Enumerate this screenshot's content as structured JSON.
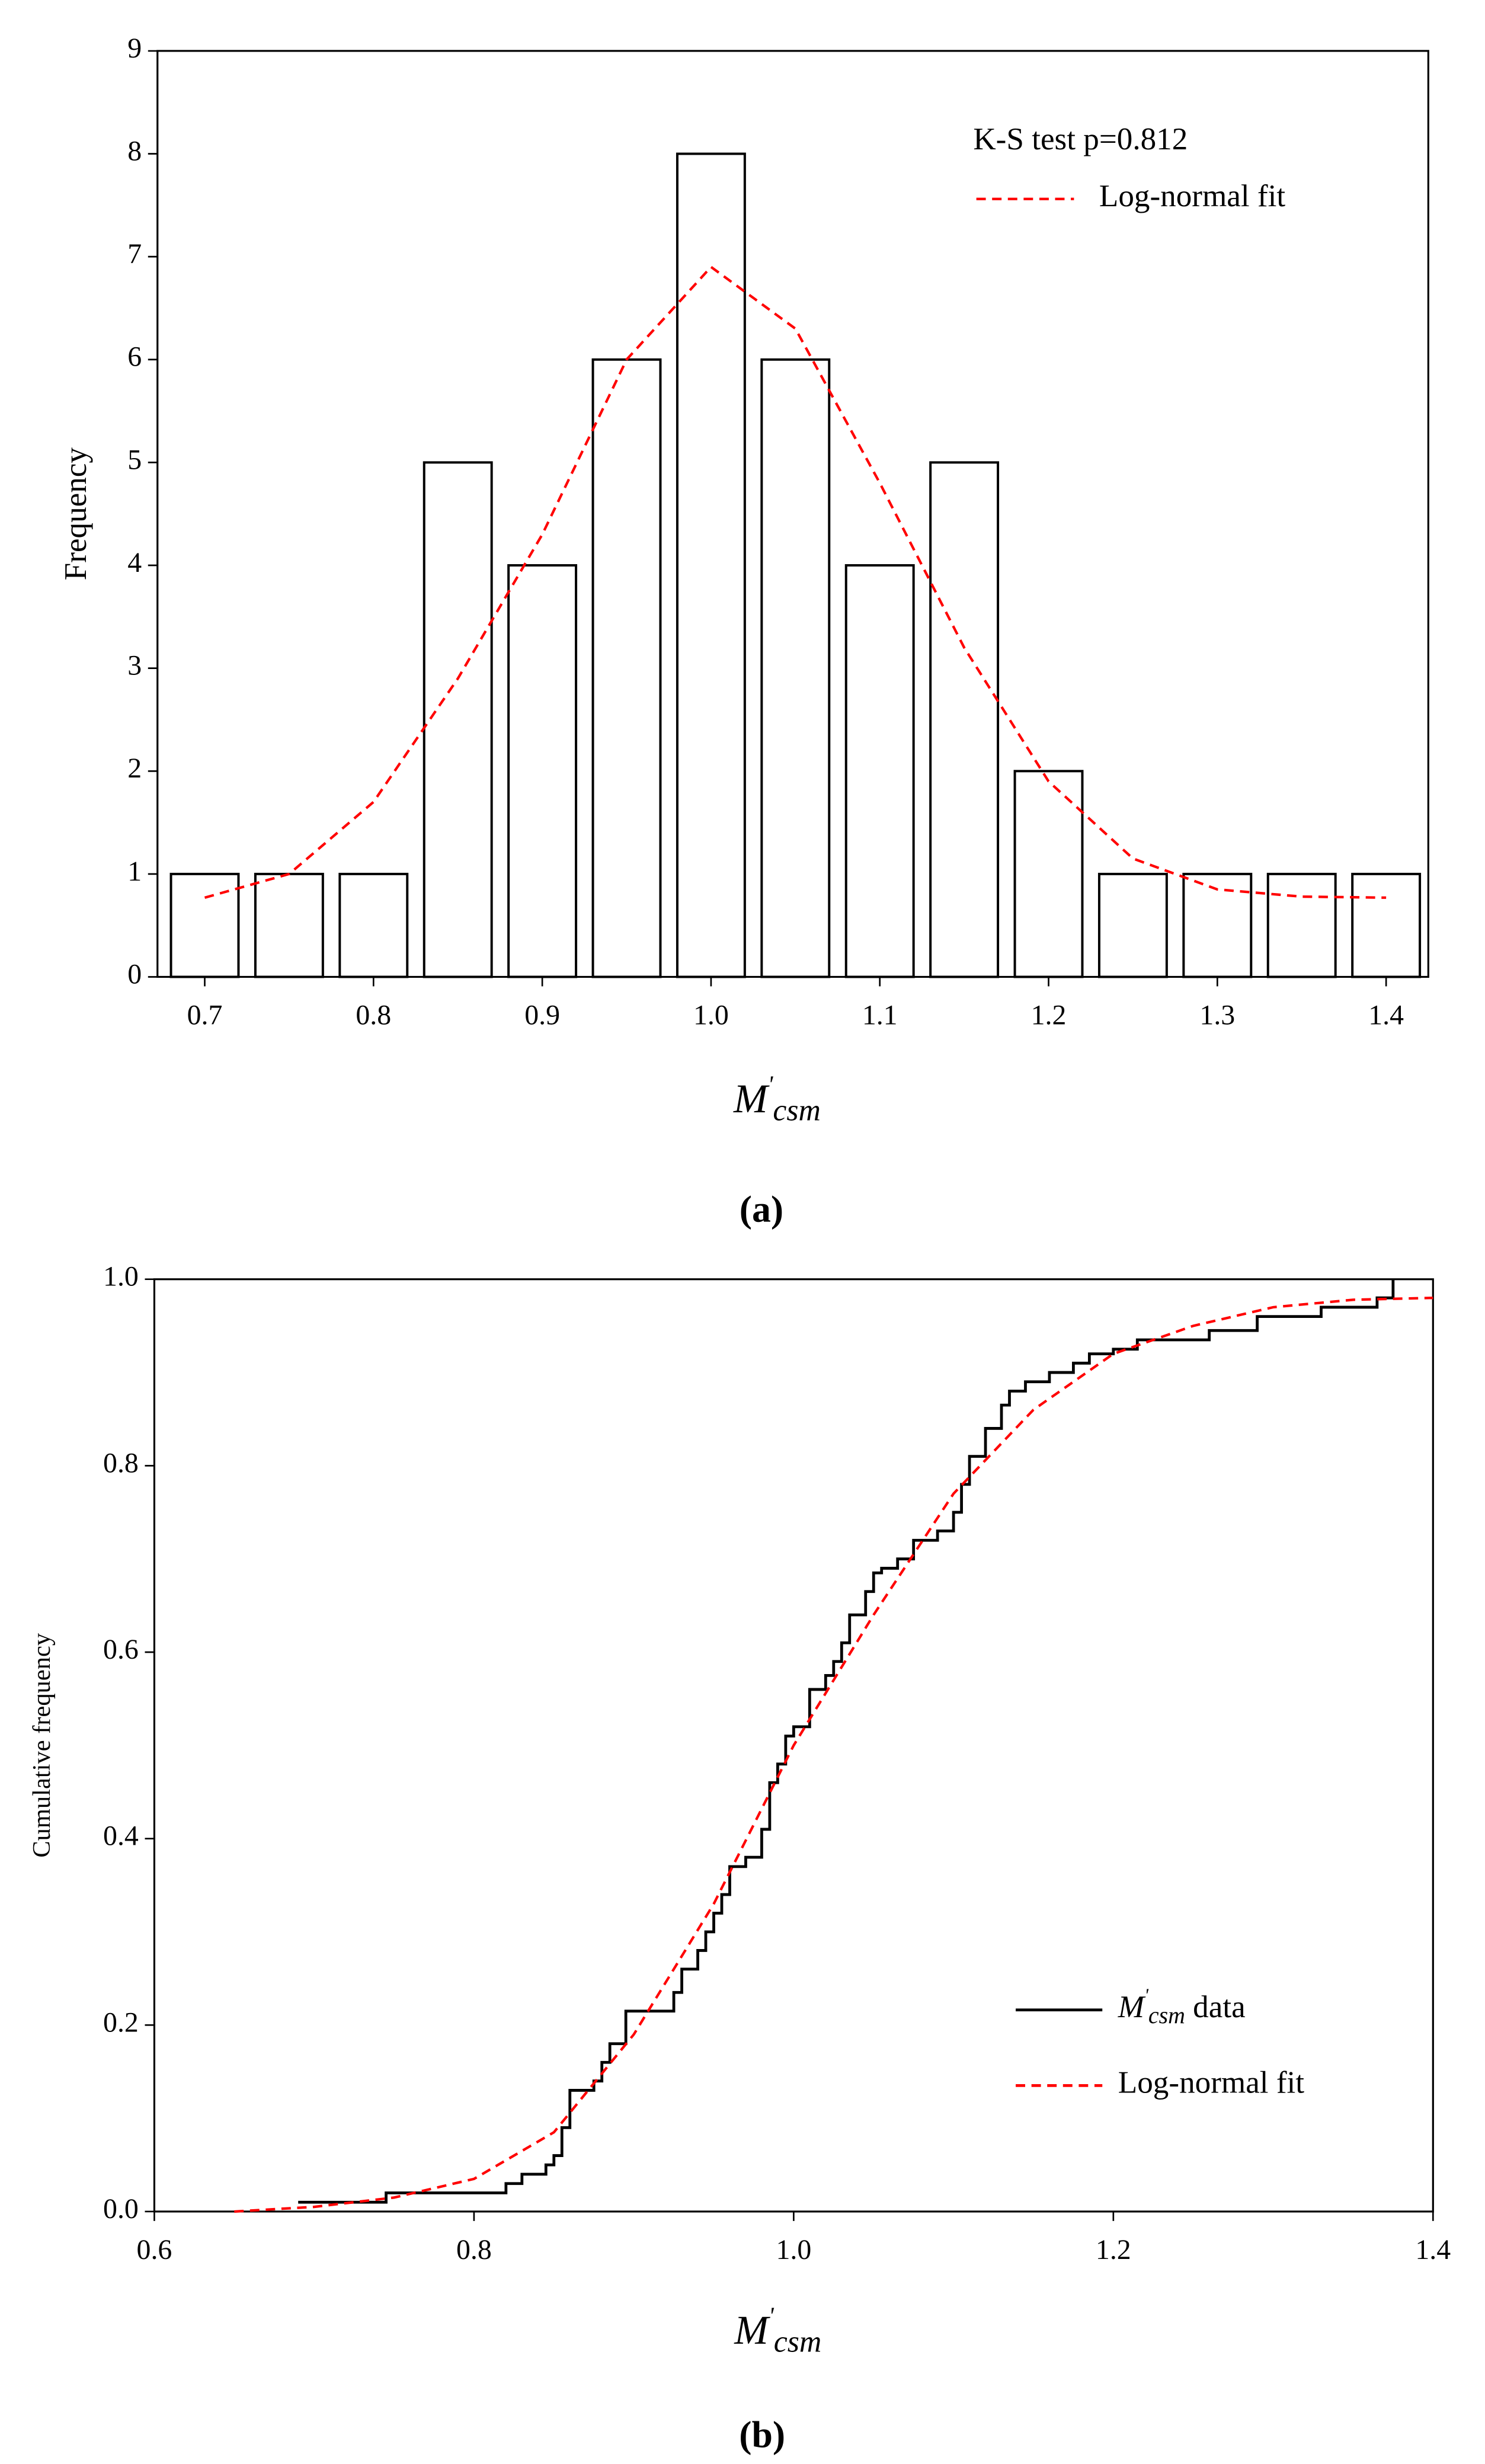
{
  "chart_data": [
    {
      "type": "histogram",
      "ylabel": "Frequency",
      "xlabel": {
        "base": "M",
        "sup": "'",
        "sub": "csm"
      },
      "caption": "(a)",
      "annotation": "K-S test p=0.812",
      "bins": [
        0.675,
        0.725,
        0.775,
        0.825,
        0.875,
        0.925,
        0.975,
        1.025,
        1.075,
        1.125,
        1.175,
        1.225,
        1.275,
        1.325,
        1.375,
        1.425
      ],
      "counts": [
        1,
        1,
        1,
        5,
        4,
        6,
        8,
        6,
        4,
        5,
        2,
        1,
        1,
        1,
        1
      ],
      "color": "#000000",
      "xlim": [
        0.672,
        1.425
      ],
      "xticks": [
        0.7,
        0.8,
        0.9,
        {
          "value": 1,
          "label": "1.0"
        },
        1.1,
        1.2,
        1.3,
        1.4
      ],
      "ylim": [
        0,
        9
      ],
      "yticks": [
        0,
        1,
        2,
        3,
        4,
        5,
        6,
        7,
        8,
        9
      ],
      "series": [
        {
          "name": "Log-normal fit",
          "color": "#ff0000",
          "style": "dashed",
          "x": [
            0.7,
            0.75,
            0.8,
            0.85,
            0.9,
            0.95,
            1.0,
            1.05,
            1.1,
            1.15,
            1.2,
            1.25,
            1.3,
            1.35,
            1.4
          ],
          "values": [
            0.77,
            1.0,
            1.7,
            2.9,
            4.3,
            6.0,
            6.9,
            6.3,
            4.8,
            3.2,
            1.9,
            1.15,
            0.85,
            0.78,
            0.77
          ]
        }
      ]
    },
    {
      "type": "line",
      "ylabel": "Cumulative frequency",
      "xlabel": {
        "base": "M",
        "sup": "'",
        "sub": "csm"
      },
      "caption": "(b)",
      "xlim": [
        0.6,
        1.4
      ],
      "xticks": [
        0.6,
        0.8,
        {
          "value": 1,
          "label": "1.0"
        },
        1.2,
        1.4
      ],
      "ylim": [
        0,
        1
      ],
      "yticks": [
        {
          "value": 0,
          "label": "0.0"
        },
        0.2,
        0.4,
        0.6,
        0.8,
        {
          "value": 1,
          "label": "1.0"
        }
      ],
      "legend": "lower right",
      "series": [
        {
          "name": {
            "base": "M",
            "sup": "'",
            "sub": "csm",
            "text": " data"
          },
          "color": "#000000",
          "style": "step",
          "x": [
            0.69,
            0.745,
            0.82,
            0.83,
            0.845,
            0.85,
            0.855,
            0.86,
            0.875,
            0.88,
            0.885,
            0.895,
            0.925,
            0.93,
            0.94,
            0.945,
            0.95,
            0.955,
            0.96,
            0.97,
            0.98,
            0.985,
            0.99,
            0.995,
            1.0,
            1.01,
            1.02,
            1.025,
            1.03,
            1.035,
            1.045,
            1.05,
            1.055,
            1.065,
            1.075,
            1.09,
            1.1,
            1.105,
            1.11,
            1.12,
            1.13,
            1.135,
            1.145,
            1.16,
            1.175,
            1.185,
            1.2,
            1.215,
            1.26,
            1.29,
            1.33,
            1.365,
            1.375
          ],
          "values": [
            0.01,
            0.02,
            0.03,
            0.04,
            0.05,
            0.06,
            0.09,
            0.13,
            0.14,
            0.16,
            0.18,
            0.215,
            0.235,
            0.26,
            0.28,
            0.3,
            0.32,
            0.34,
            0.37,
            0.38,
            0.41,
            0.46,
            0.48,
            0.51,
            0.52,
            0.56,
            0.575,
            0.59,
            0.61,
            0.64,
            0.665,
            0.685,
            0.69,
            0.7,
            0.72,
            0.73,
            0.75,
            0.78,
            0.81,
            0.84,
            0.865,
            0.88,
            0.89,
            0.9,
            0.91,
            0.92,
            0.925,
            0.935,
            0.945,
            0.96,
            0.97,
            0.98,
            1.0
          ]
        },
        {
          "name": "Log-normal fit",
          "color": "#ff0000",
          "style": "dashed",
          "x": [
            0.65,
            0.7,
            0.75,
            0.8,
            0.85,
            0.9,
            0.95,
            1.0,
            1.05,
            1.1,
            1.15,
            1.2,
            1.25,
            1.3,
            1.35,
            1.4
          ],
          "values": [
            0.0,
            0.005,
            0.015,
            0.035,
            0.085,
            0.19,
            0.33,
            0.5,
            0.64,
            0.77,
            0.86,
            0.92,
            0.95,
            0.97,
            0.978,
            0.98
          ]
        }
      ]
    }
  ]
}
